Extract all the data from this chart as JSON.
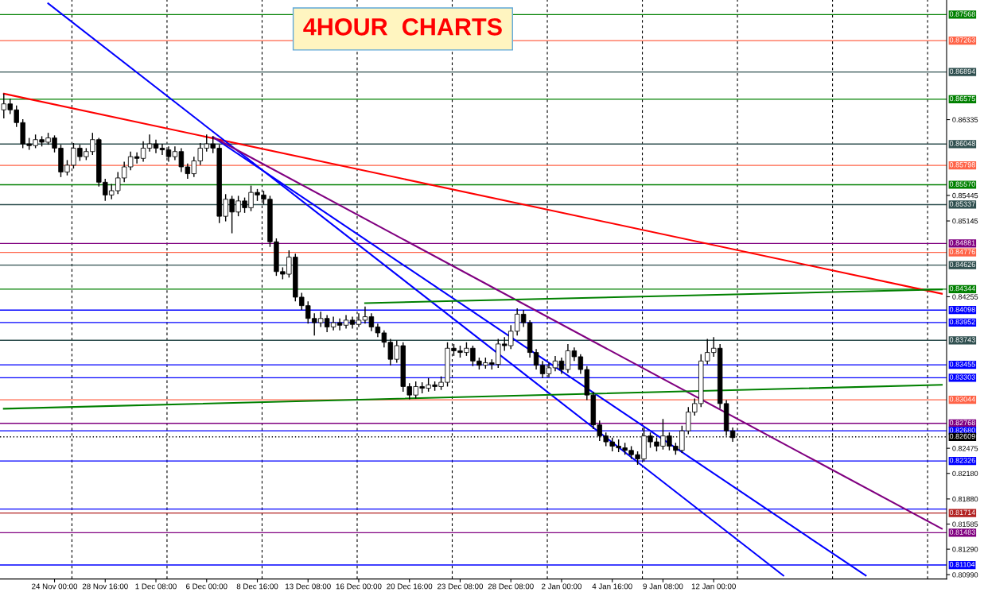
{
  "chart_data": {
    "type": "candlestick",
    "title": "4HOUR  CHARTS",
    "categories": [
      null,
      null,
      null,
      null,
      null,
      null,
      null,
      null,
      "24 Nov 00:00",
      null,
      null,
      null,
      null,
      null,
      null,
      null,
      "28 Nov 16:00",
      null,
      null,
      null,
      null,
      null,
      null,
      null,
      "1 Dec 08:00",
      null,
      null,
      null,
      null,
      null,
      null,
      null,
      "6 Dec 00:00",
      null,
      null,
      null,
      null,
      null,
      null,
      null,
      "8 Dec 16:00",
      null,
      null,
      null,
      null,
      null,
      null,
      null,
      "13 Dec 08:00",
      null,
      null,
      null,
      null,
      null,
      null,
      null,
      "16 Dec 00:00",
      null,
      null,
      null,
      null,
      null,
      null,
      null,
      "20 Dec 16:00",
      null,
      null,
      null,
      null,
      null,
      null,
      null,
      "23 Dec 08:00",
      null,
      null,
      null,
      null,
      null,
      null,
      null,
      "28 Dec 08:00",
      null,
      null,
      null,
      null,
      null,
      null,
      null,
      "2 Jan 00:00",
      null,
      null,
      null,
      null,
      null,
      null,
      null,
      "4 Jan 16:00",
      null,
      null,
      null,
      null,
      null,
      null,
      null,
      "9 Jan 08:00",
      null,
      null,
      null,
      null,
      null,
      null,
      null,
      "12 Jan 00:00",
      null,
      null,
      null,
      null,
      null,
      null,
      null,
      null,
      null,
      null,
      null,
      null,
      null,
      null,
      null,
      null,
      null,
      null,
      null,
      null,
      null,
      null,
      null,
      null,
      null,
      null,
      null,
      null,
      null,
      null,
      null,
      null,
      null,
      null,
      null,
      null
    ],
    "ohlc": [
      [
        0.8645,
        0.8664,
        0.8635,
        0.8652
      ],
      [
        0.8652,
        0.8658,
        0.864,
        0.8645
      ],
      [
        0.8645,
        0.865,
        0.8625,
        0.863
      ],
      [
        0.863,
        0.8634,
        0.86,
        0.8605
      ],
      [
        0.8605,
        0.8612,
        0.8598,
        0.8603
      ],
      [
        0.8603,
        0.8616,
        0.86,
        0.861
      ],
      [
        0.861,
        0.8614,
        0.8602,
        0.8607
      ],
      [
        0.8607,
        0.8618,
        0.8604,
        0.8612
      ],
      [
        0.8612,
        0.8615,
        0.8595,
        0.86
      ],
      [
        0.86,
        0.8604,
        0.8566,
        0.8572
      ],
      [
        0.8572,
        0.8586,
        0.8568,
        0.858
      ],
      [
        0.858,
        0.8606,
        0.8576,
        0.86
      ],
      [
        0.86,
        0.8604,
        0.8585,
        0.859
      ],
      [
        0.859,
        0.86,
        0.8586,
        0.8596
      ],
      [
        0.8596,
        0.8618,
        0.8592,
        0.861
      ],
      [
        0.861,
        0.8612,
        0.8555,
        0.856
      ],
      [
        0.856,
        0.8564,
        0.8538,
        0.8545
      ],
      [
        0.8545,
        0.8558,
        0.854,
        0.855
      ],
      [
        0.855,
        0.8572,
        0.8546,
        0.8565
      ],
      [
        0.8565,
        0.8584,
        0.856,
        0.8578
      ],
      [
        0.8578,
        0.8596,
        0.8574,
        0.859
      ],
      [
        0.859,
        0.8595,
        0.8582,
        0.8588
      ],
      [
        0.8588,
        0.8608,
        0.8584,
        0.86
      ],
      [
        0.86,
        0.8616,
        0.8596,
        0.8605
      ],
      [
        0.8605,
        0.861,
        0.8594,
        0.86
      ],
      [
        0.86,
        0.8605,
        0.8592,
        0.8598
      ],
      [
        0.8598,
        0.8602,
        0.8584,
        0.859
      ],
      [
        0.859,
        0.8602,
        0.8586,
        0.8596
      ],
      [
        0.8596,
        0.86,
        0.8572,
        0.8578
      ],
      [
        0.8578,
        0.8582,
        0.8564,
        0.857
      ],
      [
        0.857,
        0.859,
        0.8566,
        0.8585
      ],
      [
        0.8585,
        0.8606,
        0.858,
        0.86
      ],
      [
        0.86,
        0.8616,
        0.8596,
        0.8605
      ],
      [
        0.8605,
        0.8614,
        0.8594,
        0.86
      ],
      [
        0.86,
        0.8604,
        0.8512,
        0.852
      ],
      [
        0.852,
        0.8546,
        0.8514,
        0.854
      ],
      [
        0.854,
        0.8544,
        0.85,
        0.8525
      ],
      [
        0.8525,
        0.8544,
        0.852,
        0.8538
      ],
      [
        0.8538,
        0.8542,
        0.8524,
        0.853
      ],
      [
        0.853,
        0.8556,
        0.8526,
        0.8548
      ],
      [
        0.8548,
        0.8552,
        0.8538,
        0.8545
      ],
      [
        0.8545,
        0.855,
        0.8534,
        0.854
      ],
      [
        0.854,
        0.8544,
        0.8484,
        0.849
      ],
      [
        0.849,
        0.8494,
        0.845,
        0.8455
      ],
      [
        0.8455,
        0.846,
        0.8446,
        0.8452
      ],
      [
        0.8452,
        0.848,
        0.8448,
        0.8472
      ],
      [
        0.8472,
        0.8476,
        0.842,
        0.8425
      ],
      [
        0.8425,
        0.843,
        0.841,
        0.8415
      ],
      [
        0.8415,
        0.842,
        0.8394,
        0.84
      ],
      [
        0.84,
        0.8406,
        0.838,
        0.8395
      ],
      [
        0.8395,
        0.8408,
        0.839,
        0.84
      ],
      [
        0.84,
        0.8404,
        0.8384,
        0.839
      ],
      [
        0.839,
        0.8402,
        0.8386,
        0.8395
      ],
      [
        0.8395,
        0.84,
        0.8386,
        0.8392
      ],
      [
        0.8392,
        0.8404,
        0.8388,
        0.8398
      ],
      [
        0.8398,
        0.8402,
        0.8388,
        0.8393
      ],
      [
        0.8393,
        0.8406,
        0.839,
        0.8398
      ],
      [
        0.8398,
        0.8414,
        0.8394,
        0.8402
      ],
      [
        0.8402,
        0.8406,
        0.8385,
        0.839
      ],
      [
        0.839,
        0.8394,
        0.8378,
        0.8383
      ],
      [
        0.8383,
        0.8386,
        0.8366,
        0.8372
      ],
      [
        0.8372,
        0.8376,
        0.8345,
        0.8352
      ],
      [
        0.8352,
        0.8374,
        0.8348,
        0.8368
      ],
      [
        0.8368,
        0.8372,
        0.8314,
        0.832
      ],
      [
        0.832,
        0.8324,
        0.8305,
        0.831
      ],
      [
        0.831,
        0.8326,
        0.8306,
        0.832
      ],
      [
        0.832,
        0.8325,
        0.8312,
        0.8318
      ],
      [
        0.8318,
        0.833,
        0.8314,
        0.8322
      ],
      [
        0.8322,
        0.8326,
        0.8315,
        0.832
      ],
      [
        0.832,
        0.8332,
        0.8316,
        0.8325
      ],
      [
        0.8325,
        0.8372,
        0.832,
        0.8365
      ],
      [
        0.8365,
        0.837,
        0.8356,
        0.8362
      ],
      [
        0.8362,
        0.8368,
        0.8354,
        0.836
      ],
      [
        0.836,
        0.8372,
        0.8356,
        0.8365
      ],
      [
        0.8365,
        0.8368,
        0.8344,
        0.835
      ],
      [
        0.835,
        0.8354,
        0.834,
        0.8345
      ],
      [
        0.8345,
        0.8354,
        0.8341,
        0.8348
      ],
      [
        0.8348,
        0.8352,
        0.834,
        0.8346
      ],
      [
        0.8346,
        0.8376,
        0.8342,
        0.837
      ],
      [
        0.837,
        0.8378,
        0.8362,
        0.8368
      ],
      [
        0.8368,
        0.8392,
        0.8364,
        0.8385
      ],
      [
        0.8385,
        0.8412,
        0.838,
        0.8405
      ],
      [
        0.8405,
        0.841,
        0.839,
        0.8395
      ],
      [
        0.8395,
        0.8398,
        0.8354,
        0.836
      ],
      [
        0.836,
        0.8364,
        0.834,
        0.8345
      ],
      [
        0.8345,
        0.835,
        0.833,
        0.8335
      ],
      [
        0.8335,
        0.8348,
        0.8331,
        0.8342
      ],
      [
        0.8342,
        0.8356,
        0.8338,
        0.835
      ],
      [
        0.835,
        0.8354,
        0.8335,
        0.834
      ],
      [
        0.834,
        0.837,
        0.8336,
        0.8362
      ],
      [
        0.8362,
        0.8366,
        0.835,
        0.8355
      ],
      [
        0.8355,
        0.8358,
        0.8335,
        0.834
      ],
      [
        0.834,
        0.8344,
        0.8304,
        0.831
      ],
      [
        0.831,
        0.8314,
        0.827,
        0.8275
      ],
      [
        0.8275,
        0.828,
        0.8256,
        0.8262
      ],
      [
        0.8262,
        0.8266,
        0.825,
        0.8255
      ],
      [
        0.8255,
        0.826,
        0.8244,
        0.825
      ],
      [
        0.825,
        0.8258,
        0.8243,
        0.8248
      ],
      [
        0.8248,
        0.8254,
        0.824,
        0.8245
      ],
      [
        0.8245,
        0.825,
        0.8235,
        0.824
      ],
      [
        0.824,
        0.8244,
        0.8228,
        0.8235
      ],
      [
        0.8235,
        0.8272,
        0.8232,
        0.8262
      ],
      [
        0.8262,
        0.8266,
        0.8248,
        0.8255
      ],
      [
        0.8255,
        0.826,
        0.8244,
        0.825
      ],
      [
        0.825,
        0.8282,
        0.8246,
        0.8262
      ],
      [
        0.8262,
        0.8266,
        0.8245,
        0.825
      ],
      [
        0.825,
        0.8254,
        0.824,
        0.8245
      ],
      [
        0.8245,
        0.8274,
        0.8242,
        0.8268
      ],
      [
        0.8268,
        0.8296,
        0.8264,
        0.829
      ],
      [
        0.829,
        0.8306,
        0.8286,
        0.83
      ],
      [
        0.83,
        0.8358,
        0.8296,
        0.835
      ],
      [
        0.835,
        0.8376,
        0.8346,
        0.836
      ],
      [
        0.836,
        0.8378,
        0.8355,
        0.8365
      ],
      [
        0.8365,
        0.837,
        0.8294,
        0.83
      ],
      [
        0.83,
        0.8304,
        0.8262,
        0.8268
      ],
      [
        0.8268,
        0.8272,
        0.8255,
        0.826
      ],
      null,
      null,
      null,
      null,
      null,
      null,
      null,
      null,
      null,
      null,
      null,
      null,
      null,
      null,
      null,
      null,
      null,
      null,
      null,
      null,
      null,
      null,
      null,
      null,
      null,
      null,
      null,
      null,
      null,
      null,
      null,
      null,
      null
    ],
    "series": [
      {
        "type": "line",
        "color": "#ff0000",
        "values": [
          0.8664,
          null,
          null,
          null,
          null,
          null,
          null,
          null,
          null,
          null,
          null,
          null,
          null,
          null,
          null,
          null,
          null,
          null,
          null,
          null,
          null,
          null,
          null,
          null,
          null,
          null,
          null,
          null,
          null,
          null,
          null,
          null,
          null,
          null,
          null,
          null,
          null,
          null,
          null,
          null,
          null,
          null,
          null,
          null,
          null,
          null,
          null,
          null,
          null,
          null,
          null,
          null,
          null,
          null,
          null,
          null,
          null,
          null,
          null,
          null,
          null,
          null,
          null,
          null,
          null,
          null,
          null,
          null,
          null,
          null,
          null,
          null,
          null,
          null,
          null,
          null,
          null,
          null,
          null,
          null,
          null,
          null,
          null,
          null,
          null,
          null,
          null,
          null,
          null,
          null,
          null,
          null,
          null,
          null,
          null,
          null,
          null,
          null,
          null,
          null,
          null,
          null,
          null,
          null,
          null,
          null,
          null,
          null,
          null,
          null,
          null,
          null,
          null,
          null,
          null,
          null,
          null,
          null,
          null,
          null,
          null,
          null,
          null,
          null,
          null,
          null,
          null,
          null,
          null,
          null,
          null,
          null,
          null,
          null,
          null,
          null,
          null,
          null,
          null,
          null,
          null,
          null,
          null,
          null,
          null,
          null,
          null,
          null,
          0.8429
        ]
      },
      {
        "type": "line",
        "color": "#0000ff",
        "values": [
          null,
          null,
          null,
          null,
          null,
          null,
          null,
          0.877,
          null,
          null,
          null,
          null,
          null,
          null,
          null,
          null,
          null,
          null,
          null,
          null,
          null,
          null,
          null,
          null,
          null,
          null,
          null,
          null,
          null,
          null,
          null,
          null,
          null,
          null,
          null,
          null,
          null,
          null,
          null,
          null,
          null,
          null,
          null,
          null,
          null,
          null,
          null,
          null,
          null,
          null,
          null,
          null,
          null,
          null,
          null,
          null,
          null,
          null,
          null,
          null,
          null,
          null,
          null,
          null,
          null,
          null,
          null,
          null,
          null,
          null,
          null,
          null,
          null,
          null,
          null,
          null,
          null,
          null,
          null,
          null,
          null,
          null,
          null,
          null,
          null,
          null,
          null,
          null,
          null,
          null,
          null,
          null,
          null,
          null,
          null,
          null,
          null,
          null,
          null,
          null,
          null,
          null,
          null,
          null,
          null,
          null,
          null,
          null,
          null,
          null,
          null,
          null,
          null,
          null,
          null,
          null,
          null,
          null,
          null,
          null,
          null,
          null,
          null,
          0.8098,
          null,
          null,
          null,
          null,
          null,
          null,
          null,
          null,
          null,
          null,
          null,
          null,
          null,
          null,
          null,
          null,
          null,
          null,
          null,
          null,
          null,
          null,
          null,
          null,
          null
        ]
      },
      {
        "type": "line",
        "color": "#0000ff",
        "values": [
          null,
          null,
          null,
          null,
          null,
          null,
          null,
          null,
          null,
          null,
          null,
          null,
          null,
          null,
          null,
          null,
          null,
          null,
          null,
          null,
          null,
          null,
          null,
          null,
          null,
          null,
          null,
          null,
          null,
          null,
          null,
          null,
          null,
          0.8613,
          null,
          null,
          null,
          null,
          null,
          null,
          null,
          null,
          null,
          null,
          null,
          null,
          null,
          null,
          null,
          null,
          null,
          null,
          null,
          null,
          null,
          null,
          null,
          null,
          null,
          null,
          null,
          null,
          null,
          null,
          null,
          null,
          null,
          null,
          null,
          null,
          null,
          null,
          null,
          null,
          null,
          null,
          null,
          null,
          null,
          null,
          null,
          null,
          null,
          null,
          null,
          null,
          null,
          null,
          null,
          null,
          null,
          null,
          null,
          null,
          null,
          null,
          null,
          null,
          null,
          null,
          null,
          null,
          null,
          null,
          null,
          null,
          null,
          null,
          null,
          null,
          null,
          null,
          null,
          null,
          null,
          null,
          null,
          null,
          null,
          null,
          null,
          null,
          null,
          null,
          null,
          null,
          null,
          null,
          null,
          null,
          null,
          null,
          null,
          null,
          null,
          null,
          0.8098,
          null,
          null,
          null,
          null,
          null,
          null,
          null,
          null,
          null,
          null,
          null,
          null
        ]
      },
      {
        "type": "line",
        "color": "#800080",
        "values": [
          null,
          null,
          null,
          null,
          null,
          null,
          null,
          null,
          null,
          null,
          null,
          null,
          null,
          null,
          null,
          null,
          null,
          null,
          null,
          null,
          null,
          null,
          null,
          null,
          null,
          null,
          null,
          null,
          null,
          null,
          null,
          null,
          null,
          0.8613,
          null,
          null,
          null,
          null,
          null,
          null,
          null,
          null,
          null,
          null,
          null,
          null,
          null,
          null,
          null,
          null,
          null,
          null,
          null,
          null,
          null,
          null,
          null,
          null,
          null,
          null,
          null,
          null,
          null,
          null,
          null,
          null,
          null,
          null,
          null,
          null,
          null,
          null,
          null,
          null,
          null,
          null,
          null,
          null,
          null,
          null,
          null,
          null,
          null,
          null,
          null,
          null,
          null,
          null,
          null,
          null,
          null,
          null,
          null,
          null,
          null,
          null,
          null,
          null,
          null,
          null,
          null,
          null,
          null,
          null,
          null,
          null,
          null,
          null,
          null,
          null,
          null,
          null,
          null,
          null,
          null,
          null,
          null,
          null,
          null,
          null,
          null,
          null,
          null,
          null,
          null,
          null,
          null,
          null,
          null,
          null,
          null,
          null,
          null,
          null,
          null,
          null,
          null,
          null,
          null,
          null,
          null,
          null,
          null,
          null,
          null,
          null,
          null,
          null,
          0.8153
        ]
      },
      {
        "type": "line",
        "color": "#008000",
        "values": [
          0.8294,
          null,
          null,
          null,
          null,
          null,
          null,
          null,
          null,
          null,
          null,
          null,
          null,
          null,
          null,
          null,
          null,
          null,
          null,
          null,
          null,
          null,
          null,
          null,
          null,
          null,
          null,
          null,
          null,
          null,
          null,
          null,
          null,
          null,
          null,
          null,
          null,
          null,
          null,
          null,
          null,
          null,
          null,
          null,
          null,
          null,
          null,
          null,
          null,
          null,
          null,
          null,
          null,
          null,
          null,
          null,
          null,
          null,
          null,
          null,
          null,
          null,
          null,
          null,
          null,
          null,
          null,
          null,
          null,
          null,
          null,
          null,
          null,
          null,
          null,
          null,
          null,
          null,
          null,
          null,
          null,
          null,
          null,
          null,
          null,
          null,
          null,
          null,
          null,
          null,
          null,
          null,
          null,
          null,
          null,
          null,
          null,
          null,
          null,
          null,
          null,
          null,
          null,
          null,
          null,
          null,
          null,
          null,
          null,
          null,
          null,
          null,
          null,
          null,
          null,
          null,
          null,
          null,
          null,
          null,
          null,
          null,
          null,
          null,
          null,
          null,
          null,
          null,
          null,
          null,
          null,
          null,
          null,
          null,
          null,
          null,
          null,
          null,
          null,
          null,
          null,
          null,
          null,
          null,
          null,
          null,
          null,
          null,
          0.8322
        ]
      },
      {
        "type": "line",
        "color": "#008000",
        "values": [
          null,
          null,
          null,
          null,
          null,
          null,
          null,
          null,
          null,
          null,
          null,
          null,
          null,
          null,
          null,
          null,
          null,
          null,
          null,
          null,
          null,
          null,
          null,
          null,
          null,
          null,
          null,
          null,
          null,
          null,
          null,
          null,
          null,
          null,
          null,
          null,
          null,
          null,
          null,
          null,
          null,
          null,
          null,
          null,
          null,
          null,
          null,
          null,
          null,
          null,
          null,
          null,
          null,
          null,
          null,
          null,
          null,
          0.8418,
          null,
          null,
          null,
          null,
          null,
          null,
          null,
          null,
          null,
          null,
          null,
          null,
          null,
          null,
          null,
          null,
          null,
          null,
          null,
          null,
          null,
          null,
          null,
          null,
          null,
          null,
          null,
          null,
          null,
          null,
          null,
          null,
          null,
          null,
          null,
          null,
          null,
          null,
          null,
          null,
          null,
          null,
          null,
          null,
          null,
          null,
          null,
          null,
          null,
          null,
          null,
          null,
          null,
          null,
          null,
          null,
          null,
          null,
          null,
          null,
          null,
          null,
          null,
          null,
          null,
          null,
          null,
          null,
          null,
          null,
          null,
          null,
          null,
          null,
          null,
          null,
          null,
          null,
          null,
          null,
          null,
          null,
          null,
          null,
          null,
          null,
          null,
          null,
          null,
          null,
          0.8434
        ]
      }
    ],
    "ref_lines": [
      {
        "axis": "y",
        "value": 0.87568,
        "label": "0.87568",
        "color": "#008000"
      },
      {
        "axis": "y",
        "value": 0.87263,
        "label": "0.87263",
        "color": "#ff6347"
      },
      {
        "axis": "y",
        "value": 0.86894,
        "label": "0.86894",
        "color": "#2f4f4f"
      },
      {
        "axis": "y",
        "value": 0.86575,
        "label": "0.86575",
        "color": "#008000"
      },
      {
        "axis": "y",
        "value": 0.86048,
        "label": "0.86048",
        "color": "#2f4f4f"
      },
      {
        "axis": "y",
        "value": 0.85798,
        "label": "0.85798",
        "color": "#ff6347"
      },
      {
        "axis": "y",
        "value": 0.8557,
        "label": "0.85570",
        "color": "#008000"
      },
      {
        "axis": "y",
        "value": 0.85337,
        "label": "0.85337",
        "color": "#2f4f4f"
      },
      {
        "axis": "y",
        "value": 0.84881,
        "label": "0.84881",
        "color": "#800080"
      },
      {
        "axis": "y",
        "value": 0.84776,
        "label": "0.84776",
        "color": "#ff6347"
      },
      {
        "axis": "y",
        "value": 0.84626,
        "label": "0.84626",
        "color": "#2f4f4f"
      },
      {
        "axis": "y",
        "value": 0.84344,
        "label": "0.84344",
        "color": "#008000"
      },
      {
        "axis": "y",
        "value": 0.84098,
        "label": "0.84098",
        "color": "#0000ff"
      },
      {
        "axis": "y",
        "value": 0.83952,
        "label": "0.83952",
        "color": "#0000ff"
      },
      {
        "axis": "y",
        "value": 0.83743,
        "label": "0.83743",
        "color": "#2f4f4f"
      },
      {
        "axis": "y",
        "value": 0.83455,
        "label": "0.83455",
        "color": "#0000ff"
      },
      {
        "axis": "y",
        "value": 0.83303,
        "label": "0.83303",
        "color": "#0000ff"
      },
      {
        "axis": "y",
        "value": 0.83044,
        "label": "0.83044",
        "color": "#ff6347"
      },
      {
        "axis": "y",
        "value": 0.82768,
        "label": "0.82768",
        "color": "#800080"
      },
      {
        "axis": "y",
        "value": 0.8268,
        "label": "0.82680",
        "color": "#0000ff"
      },
      {
        "axis": "y",
        "value": 0.82609,
        "label": "0.82609",
        "color": "#000000",
        "line_style": "dotted"
      },
      {
        "axis": "y",
        "value": 0.82326,
        "label": "0.82326",
        "color": "#0000ff"
      },
      {
        "axis": "y",
        "value": 0.81761,
        "color": "#0000ff"
      },
      {
        "axis": "y",
        "value": 0.81714,
        "label": "0.81714",
        "color": "#b22222"
      },
      {
        "axis": "y",
        "value": 0.81483,
        "label": "0.81483",
        "color": "#800080"
      },
      {
        "axis": "y",
        "value": 0.81104,
        "label": "0.81104",
        "color": "#0000ff"
      }
    ],
    "ylim": [
      0.8094,
      0.8774
    ],
    "yticks": [
      {
        "value": 0.86335,
        "label": "0.86335"
      },
      {
        "value": 0.85445,
        "label": "0.85445"
      },
      {
        "value": 0.85145,
        "label": "0.85145"
      },
      {
        "value": 0.84255,
        "label": "0.84255"
      },
      {
        "value": 0.82475,
        "label": "0.82475"
      },
      {
        "value": 0.8218,
        "label": "0.82180"
      },
      {
        "value": 0.8188,
        "label": "0.81880"
      },
      {
        "value": 0.81585,
        "label": "0.81585"
      },
      {
        "value": 0.8129,
        "label": "0.81290"
      },
      {
        "value": 0.8099,
        "label": "0.80990"
      }
    ]
  }
}
